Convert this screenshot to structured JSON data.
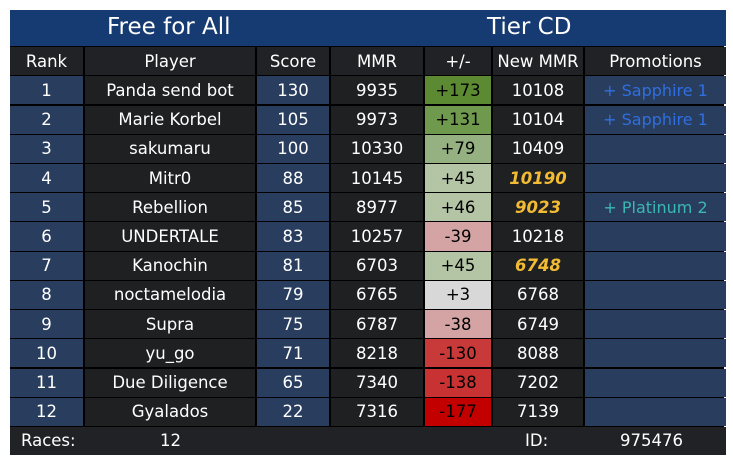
{
  "title": {
    "left": "Free for All",
    "right": "Tier CD"
  },
  "columns": [
    "Rank",
    "Player",
    "Score",
    "MMR",
    "+/-",
    "New MMR",
    "Promotions"
  ],
  "rows": [
    {
      "rank": "1",
      "player": "Panda send bot",
      "score": "130",
      "mmr": "9935",
      "delta": "+173",
      "delta_color": "#5b8a32",
      "delta_text_color": "#000000",
      "new_mmr": "10108",
      "new_mmr_highlight": false,
      "promotion": "+ Sapphire 1",
      "promotion_color": "#2f6fe0"
    },
    {
      "rank": "2",
      "player": "Marie Korbel",
      "score": "105",
      "mmr": "9973",
      "delta": "+131",
      "delta_color": "#6f9a4d",
      "delta_text_color": "#000000",
      "new_mmr": "10104",
      "new_mmr_highlight": false,
      "promotion": "+ Sapphire 1",
      "promotion_color": "#2f6fe0"
    },
    {
      "rank": "3",
      "player": "sakumaru",
      "score": "100",
      "mmr": "10330",
      "delta": "+79",
      "delta_color": "#95b182",
      "delta_text_color": "#000000",
      "new_mmr": "10409",
      "new_mmr_highlight": false,
      "promotion": "",
      "promotion_color": ""
    },
    {
      "rank": "4",
      "player": "Mitr0",
      "score": "88",
      "mmr": "10145",
      "delta": "+45",
      "delta_color": "#b4c5a6",
      "delta_text_color": "#000000",
      "new_mmr": "10190",
      "new_mmr_highlight": true,
      "promotion": "",
      "promotion_color": ""
    },
    {
      "rank": "5",
      "player": "Rebellion",
      "score": "85",
      "mmr": "8977",
      "delta": "+46",
      "delta_color": "#b4c5a6",
      "delta_text_color": "#000000",
      "new_mmr": "9023",
      "new_mmr_highlight": true,
      "promotion": "+ Platinum 2",
      "promotion_color": "#3bb7b6"
    },
    {
      "rank": "6",
      "player": "UNDERTALE",
      "score": "83",
      "mmr": "10257",
      "delta": "-39",
      "delta_color": "#d4a3a3",
      "delta_text_color": "#000000",
      "new_mmr": "10218",
      "new_mmr_highlight": false,
      "promotion": "",
      "promotion_color": ""
    },
    {
      "rank": "7",
      "player": "Kanochin",
      "score": "81",
      "mmr": "6703",
      "delta": "+45",
      "delta_color": "#b4c5a6",
      "delta_text_color": "#000000",
      "new_mmr": "6748",
      "new_mmr_highlight": true,
      "promotion": "",
      "promotion_color": ""
    },
    {
      "rank": "8",
      "player": "noctamelodia",
      "score": "79",
      "mmr": "6765",
      "delta": "+3",
      "delta_color": "#d8d8d8",
      "delta_text_color": "#000000",
      "new_mmr": "6768",
      "new_mmr_highlight": false,
      "promotion": "",
      "promotion_color": ""
    },
    {
      "rank": "9",
      "player": "Supra",
      "score": "75",
      "mmr": "6787",
      "delta": "-38",
      "delta_color": "#d4a3a3",
      "delta_text_color": "#000000",
      "new_mmr": "6749",
      "new_mmr_highlight": false,
      "promotion": "",
      "promotion_color": ""
    },
    {
      "rank": "10",
      "player": "yu_go",
      "score": "71",
      "mmr": "8218",
      "delta": "-130",
      "delta_color": "#c83a3a",
      "delta_text_color": "#000000",
      "new_mmr": "8088",
      "new_mmr_highlight": false,
      "promotion": "",
      "promotion_color": ""
    },
    {
      "rank": "11",
      "player": "Due Diligence",
      "score": "65",
      "mmr": "7340",
      "delta": "-138",
      "delta_color": "#c83232",
      "delta_text_color": "#000000",
      "new_mmr": "7202",
      "new_mmr_highlight": false,
      "promotion": "",
      "promotion_color": ""
    },
    {
      "rank": "12",
      "player": "Gyalados",
      "score": "22",
      "mmr": "7316",
      "delta": "-177",
      "delta_color": "#c30000",
      "delta_text_color": "#000000",
      "new_mmr": "7139",
      "new_mmr_highlight": false,
      "promotion": "",
      "promotion_color": ""
    }
  ],
  "footer": {
    "races_label": "Races:",
    "races_value": "12",
    "id_label": "ID:",
    "id_value": "975476"
  },
  "colors": {
    "title_bg": "#163a72",
    "header_bg": "#212226",
    "row_blue": "#293d5e",
    "row_dark": "#1f2022",
    "highlight_mmr": "#f2bb33"
  }
}
